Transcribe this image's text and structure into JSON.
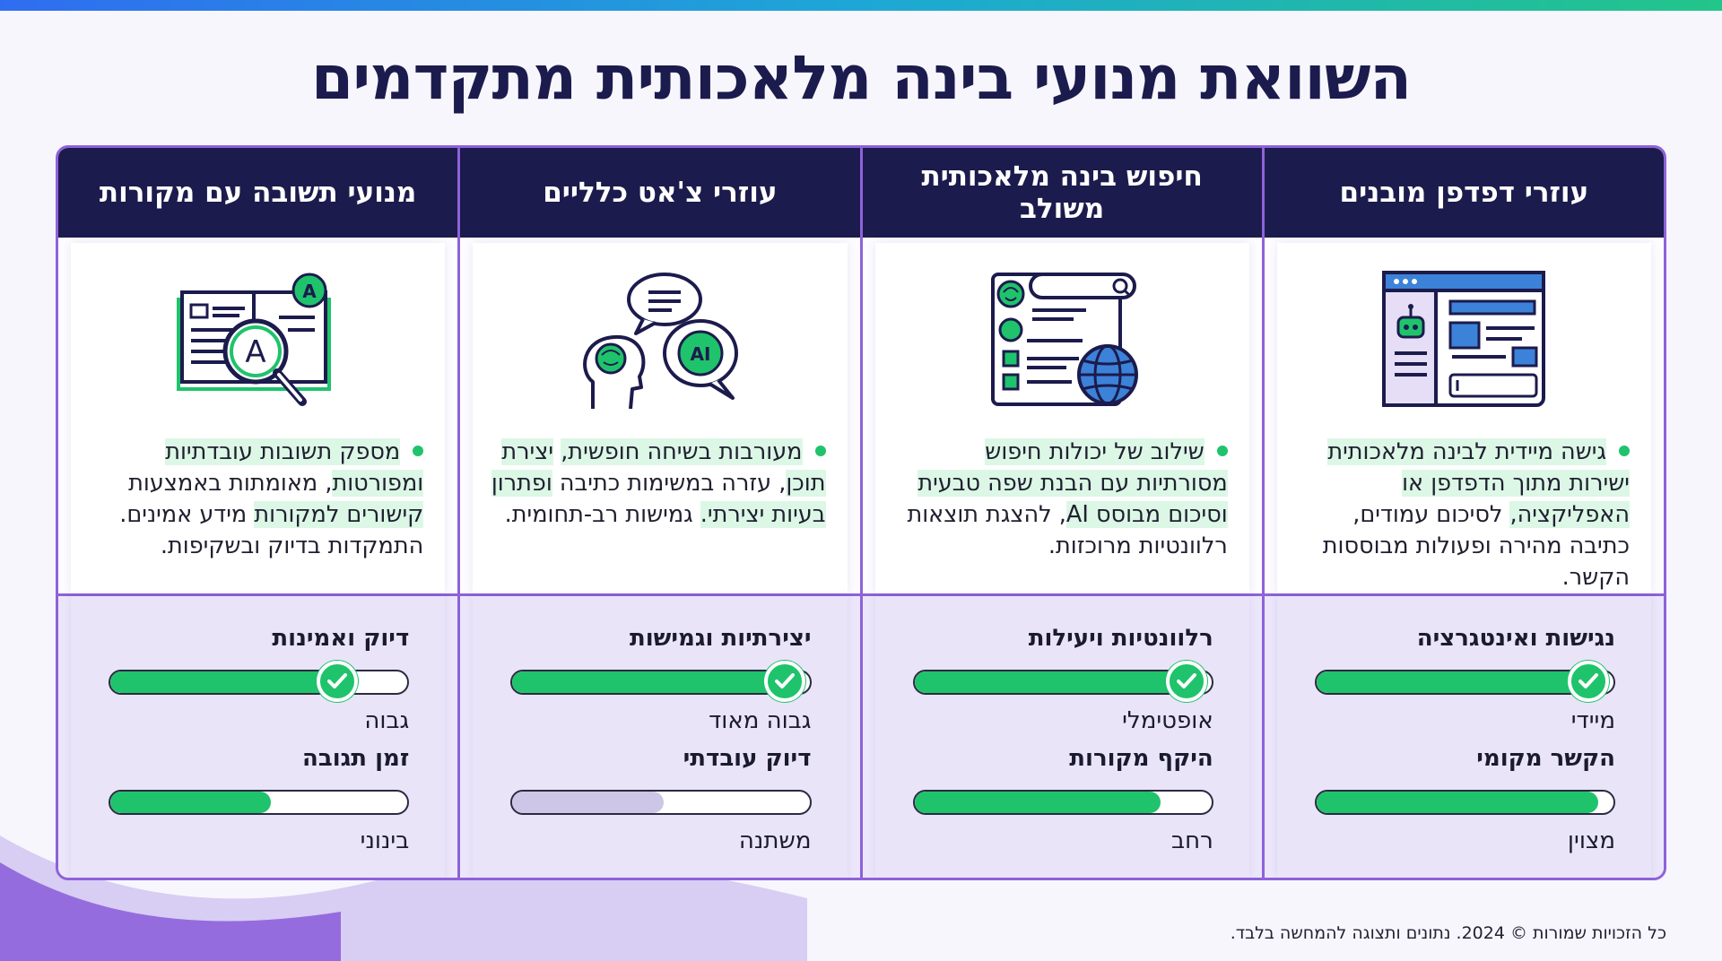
{
  "title": "השוואת מנועי בינה מלאכותית מתקדמים",
  "colors": {
    "accent_green": "#1fc36b",
    "navy": "#1c1b4d",
    "purple_border": "#8e62d9"
  },
  "columns": [
    {
      "header": "עוזרי דפדפן מובנים",
      "icon": "browser-robot-icon",
      "desc": [
        {
          "t": "גישה מיידית לבינה מלאכותית",
          "hl": true
        },
        {
          "t": " ",
          "hl": false
        },
        {
          "t": "ישירות מתוך הדפדפן או האפליקציה,",
          "hl": true
        },
        {
          "t": " לסיכום עמודים, כתיבה מהירה ופעולות מבוססות הקשר.",
          "hl": false
        }
      ],
      "metrics": [
        {
          "label": "נגישות ואינטגרציה",
          "value": "מיידי",
          "fill": 0.95,
          "check": true,
          "muted": false
        },
        {
          "label": "הקשר מקומי",
          "value": "מצוין",
          "fill": 0.95,
          "check": false,
          "muted": false
        }
      ]
    },
    {
      "header": "חיפוש בינה מלאכותית משולב",
      "icon": "search-brain-globe-icon",
      "desc": [
        {
          "t": "שילוב של יכולות חיפוש",
          "hl": true
        },
        {
          "t": " ",
          "hl": false
        },
        {
          "t": "מסורתיות עם הבנת שפה טבעית וסיכום מבוסס AI",
          "hl": true
        },
        {
          "t": ", להצגת תוצאות רלוונטיות מרוכזות.",
          "hl": false
        }
      ],
      "metrics": [
        {
          "label": "רלוונטיות ויעילות",
          "value": "אופטימלי",
          "fill": 0.95,
          "check": true,
          "muted": false
        },
        {
          "label": "היקף מקורות",
          "value": "רחב",
          "fill": 0.83,
          "check": false,
          "muted": false
        }
      ]
    },
    {
      "header": "עוזרי צ'אט כלליים",
      "icon": "chat-bubbles-head-icon",
      "desc": [
        {
          "t": "מעורבות בשיחה חופשית,",
          "hl": true
        },
        {
          "t": " ",
          "hl": false
        },
        {
          "t": "יצירת תוכן",
          "hl": true
        },
        {
          "t": ", עזרה במשימות כתיבה ",
          "hl": false
        },
        {
          "t": "ופתרון בעיות יצירתי.",
          "hl": true
        },
        {
          "t": " גמישות רב-תחומית.",
          "hl": false
        }
      ],
      "metrics": [
        {
          "label": "יצירתיות וגמישות",
          "value": "גבוה מאוד",
          "fill": 0.95,
          "check": true,
          "muted": false
        },
        {
          "label": "דיוק עובדתי",
          "value": "משתנה",
          "fill": 0.51,
          "check": false,
          "muted": true
        }
      ]
    },
    {
      "header": "מנועי תשובה עם מקורות",
      "icon": "book-magnifier-icon",
      "desc": [
        {
          "t": "מספק תשובות עובדתיות",
          "hl": true
        },
        {
          "t": " ",
          "hl": false
        },
        {
          "t": "ומפורטות",
          "hl": true
        },
        {
          "t": ", מאומתות באמצעות ",
          "hl": false
        },
        {
          "t": "קישורים למקורות",
          "hl": true
        },
        {
          "t": " מידע אמינים. התמקדות בדיוק ובשקיפות.",
          "hl": false
        }
      ],
      "metrics": [
        {
          "label": "דיוק ואמינות",
          "value": "גבוה",
          "fill": 0.8,
          "check": true,
          "muted": false
        },
        {
          "label": "זמן תגובה",
          "value": "בינוני",
          "fill": 0.54,
          "check": false,
          "muted": false
        }
      ]
    }
  ],
  "footer": "כל הזכויות שמורות © 2024. נתונים ותצוגה להמחשה בלבד."
}
